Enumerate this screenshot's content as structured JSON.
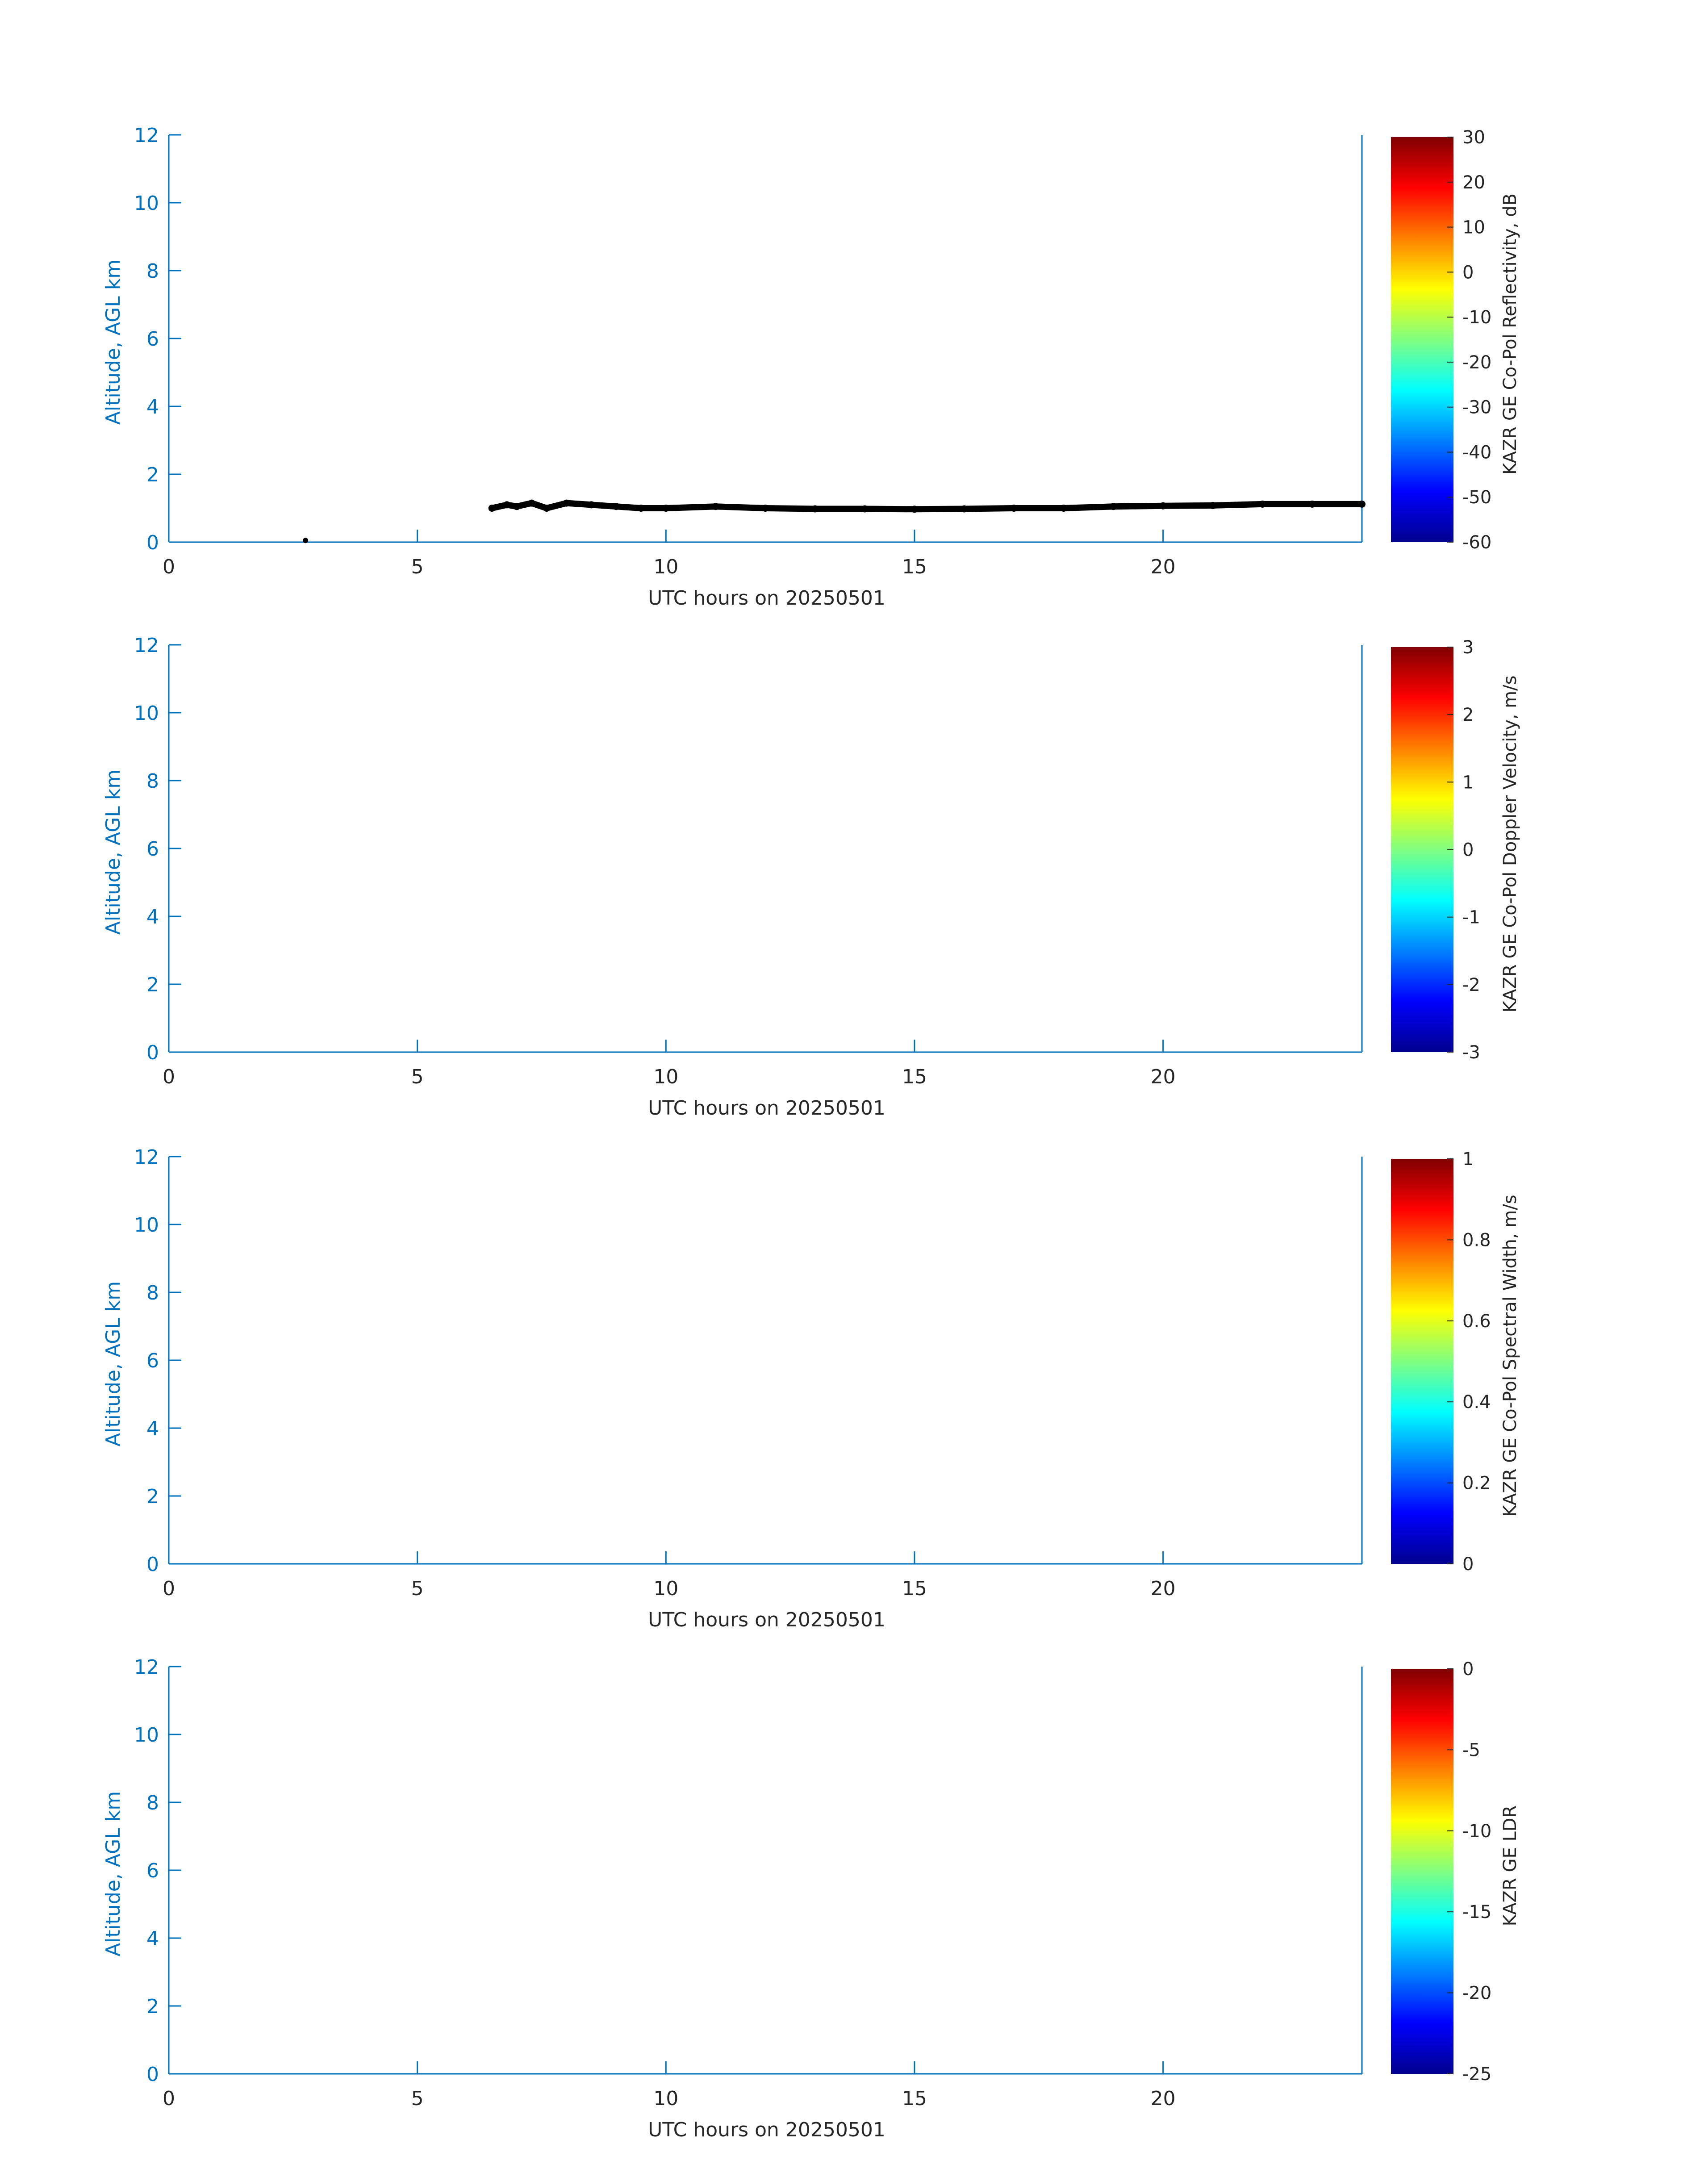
{
  "colors": {
    "axis": "#0072BD",
    "text": "#262626",
    "data_mark": "#000000",
    "colormap_jet": [
      "#00008F",
      "#0000FF",
      "#0080FF",
      "#00FFFF",
      "#80FF80",
      "#FFFF00",
      "#FF8000",
      "#FF0000",
      "#800000"
    ]
  },
  "chart_data": [
    {
      "type": "heatmap",
      "xlabel": "UTC hours on 20250501",
      "ylabel": "Altitude, AGL km",
      "xlim": [
        0,
        24
      ],
      "ylim": [
        0,
        12
      ],
      "xticks": [
        "0",
        "5",
        "10",
        "15",
        "20"
      ],
      "yticks": [
        "0",
        "2",
        "4",
        "6",
        "8",
        "10",
        "12"
      ],
      "colorbar": {
        "label": "KAZR GE Co-Pol Reflectivity, dB",
        "range": [
          -60,
          30
        ],
        "ticks": [
          "-60",
          "-50",
          "-40",
          "-30",
          "-20",
          "-10",
          "0",
          "10",
          "20",
          "30"
        ]
      },
      "layer": {
        "description_color": "black",
        "x": [
          6.5,
          6.8,
          7.0,
          7.3,
          7.6,
          8.0,
          8.5,
          9.0,
          9.5,
          10,
          11,
          12,
          13,
          14,
          15,
          16,
          17,
          18,
          19,
          20,
          21,
          22,
          23,
          24
        ],
        "y": [
          1.0,
          1.1,
          1.05,
          1.15,
          1.0,
          1.15,
          1.1,
          1.05,
          1.0,
          1.0,
          1.05,
          1.0,
          0.98,
          0.98,
          0.97,
          0.98,
          1.0,
          1.0,
          1.05,
          1.07,
          1.08,
          1.12,
          1.12,
          1.12
        ]
      },
      "isolated_points": [
        {
          "x": 2.75,
          "y": 0.05
        }
      ]
    },
    {
      "type": "heatmap",
      "xlabel": "UTC hours on 20250501",
      "ylabel": "Altitude, AGL km",
      "xlim": [
        0,
        24
      ],
      "ylim": [
        0,
        12
      ],
      "xticks": [
        "0",
        "5",
        "10",
        "15",
        "20"
      ],
      "yticks": [
        "0",
        "2",
        "4",
        "6",
        "8",
        "10",
        "12"
      ],
      "colorbar": {
        "label": "KAZR GE Co-Pol Doppler Velocity, m/s",
        "range": [
          -3,
          3
        ],
        "ticks": [
          "-3",
          "-2",
          "-1",
          "0",
          "1",
          "2",
          "3"
        ]
      }
    },
    {
      "type": "heatmap",
      "xlabel": "UTC hours on 20250501",
      "ylabel": "Altitude, AGL km",
      "xlim": [
        0,
        24
      ],
      "ylim": [
        0,
        12
      ],
      "xticks": [
        "0",
        "5",
        "10",
        "15",
        "20"
      ],
      "yticks": [
        "0",
        "2",
        "4",
        "6",
        "8",
        "10",
        "12"
      ],
      "colorbar": {
        "label": "KAZR GE Co-Pol Spectral Width, m/s",
        "range": [
          0,
          1
        ],
        "ticks": [
          "0",
          "0.2",
          "0.4",
          "0.6",
          "0.8",
          "1"
        ]
      }
    },
    {
      "type": "heatmap",
      "xlabel": "UTC hours on 20250501",
      "ylabel": "Altitude, AGL km",
      "xlim": [
        0,
        24
      ],
      "ylim": [
        0,
        12
      ],
      "xticks": [
        "0",
        "5",
        "10",
        "15",
        "20"
      ],
      "yticks": [
        "0",
        "2",
        "4",
        "6",
        "8",
        "10",
        "12"
      ],
      "colorbar": {
        "label": "KAZR GE LDR",
        "range": [
          -25,
          0
        ],
        "ticks": [
          "-25",
          "-20",
          "-15",
          "-10",
          "-5",
          "0"
        ]
      }
    }
  ]
}
